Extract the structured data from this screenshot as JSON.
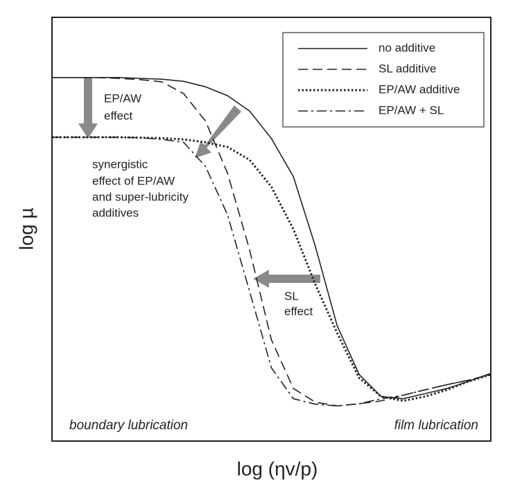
{
  "chart_data": {
    "type": "line",
    "xlabel": "log (ηv/p)",
    "ylabel": "log µ",
    "xlim": [
      0,
      100
    ],
    "ylim": [
      0,
      100
    ],
    "x": [
      0,
      5,
      10,
      15,
      20,
      25,
      30,
      35,
      40,
      45,
      50,
      55,
      60,
      65,
      70,
      75,
      80,
      85,
      90,
      95,
      100
    ],
    "series": [
      {
        "name": "no additive",
        "color": "#222222",
        "style": "solid",
        "values": [
          85.8,
          85.8,
          85.8,
          85.8,
          85.6,
          85.4,
          84.9,
          83.6,
          81.5,
          77.9,
          71.4,
          62.4,
          46.0,
          27.2,
          15.7,
          10.5,
          10.0,
          11.2,
          12.4,
          14.1,
          16.0
        ]
      },
      {
        "name": "SL additive",
        "color": "#222222",
        "style": "dashed",
        "values": [
          85.8,
          85.8,
          85.8,
          85.6,
          85.3,
          84.8,
          82.0,
          75.5,
          63.2,
          45.2,
          23.9,
          12.4,
          9.2,
          8.3,
          8.8,
          9.5,
          10.8,
          12.1,
          13.3,
          14.4,
          15.7
        ]
      },
      {
        "name": "EP/AW additive",
        "color": "#222222",
        "style": "dotted",
        "values": [
          71.7,
          71.7,
          71.7,
          71.7,
          71.6,
          71.5,
          71.2,
          70.5,
          69.4,
          66.4,
          60.0,
          50.0,
          37.0,
          25.5,
          14.9,
          10.5,
          9.5,
          10.5,
          12.1,
          14.1,
          15.7
        ]
      },
      {
        "name": "EP/AW + SL",
        "color": "#222222",
        "style": "dashdot",
        "values": [
          71.7,
          71.7,
          71.7,
          71.7,
          71.6,
          71.2,
          70.5,
          64.8,
          53.4,
          35.4,
          17.3,
          10.0,
          8.7,
          8.3,
          8.8,
          10.0,
          10.8,
          12.1,
          13.3,
          14.4,
          15.7
        ]
      }
    ],
    "annotations": {
      "ep_aw_effect": [
        "EP/AW",
        "effect"
      ],
      "synergistic": [
        "synergistic",
        "effect of EP/AW",
        "and super-lubricity",
        "additives"
      ],
      "sl_effect": [
        "SL",
        "effect"
      ],
      "boundary": "boundary lubrication",
      "film": "film lubrication"
    },
    "legend": "upper right"
  }
}
